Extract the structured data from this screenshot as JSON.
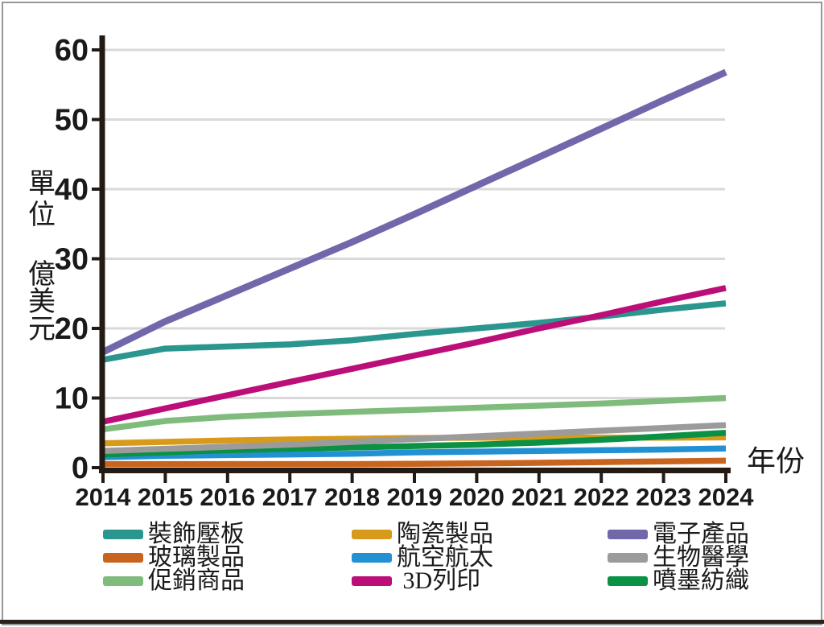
{
  "colors": {
    "grid": "#d9d9d9",
    "axis": "#241a14",
    "text": "#1a1a1a",
    "frame": "#979797",
    "bottom_bar": "#2b211c"
  },
  "chart_data": {
    "type": "line",
    "title": "",
    "xlabel": "年份",
    "ylabel": "單位 億美元",
    "x": [
      2014,
      2015,
      2016,
      2017,
      2018,
      2019,
      2020,
      2021,
      2022,
      2023,
      2024
    ],
    "ylim": [
      0,
      60
    ],
    "yticks": [
      0,
      10,
      20,
      30,
      40,
      50,
      60
    ],
    "grid": "horizontal",
    "legend_position": "bottom-3-columns",
    "series": [
      {
        "name": "玻璃製品",
        "color": "#c8641e",
        "values": [
          0.5,
          0.5,
          0.5,
          0.5,
          0.5,
          0.55,
          0.6,
          0.7,
          0.8,
          0.9,
          1.0
        ]
      },
      {
        "name": "航空航太",
        "color": "#2191d4",
        "values": [
          1.5,
          1.7,
          1.8,
          1.9,
          2.0,
          2.2,
          2.3,
          2.4,
          2.5,
          2.6,
          2.75
        ]
      },
      {
        "name": "陶瓷製品",
        "color": "#d89a1a",
        "values": [
          3.5,
          3.7,
          3.9,
          4.05,
          4.15,
          4.25,
          4.3,
          4.3,
          4.3,
          4.3,
          4.35
        ]
      },
      {
        "name": "噴墨紡織",
        "color": "#0a9143",
        "values": [
          1.9,
          2.2,
          2.5,
          2.7,
          2.9,
          3.1,
          3.3,
          3.6,
          4.0,
          4.5,
          5.0
        ]
      },
      {
        "name": "生物醫學",
        "color": "#9b9b9b",
        "values": [
          2.4,
          2.7,
          3.0,
          3.3,
          3.7,
          4.1,
          4.5,
          4.9,
          5.3,
          5.7,
          6.1
        ]
      },
      {
        "name": "促銷商品",
        "color": "#7fbc7c",
        "values": [
          5.5,
          6.7,
          7.3,
          7.7,
          8.0,
          8.3,
          8.6,
          8.9,
          9.2,
          9.6,
          10.0
        ]
      },
      {
        "name": "裝飾壓板",
        "color": "#2a968e",
        "values": [
          15.5,
          17.1,
          17.4,
          17.7,
          18.3,
          19.2,
          20.0,
          20.8,
          21.7,
          22.7,
          23.6
        ]
      },
      {
        "name": "3D列印",
        "color": "#bb0e78",
        "legend_label": " 3D列印",
        "values": [
          6.6,
          8.5,
          10.4,
          12.3,
          14.2,
          16.1,
          18.0,
          20.0,
          21.9,
          23.9,
          25.8
        ]
      },
      {
        "name": "電子產品",
        "color": "#7068ab",
        "stroke_width": 8.5,
        "values": [
          16.6,
          21.0,
          24.8,
          28.6,
          32.4,
          36.4,
          40.5,
          44.6,
          48.7,
          52.8,
          56.8
        ]
      }
    ],
    "legend_columns": [
      [
        "裝飾壓板",
        "玻璃製品",
        "促銷商品"
      ],
      [
        "陶瓷製品",
        "航空航太",
        "3D列印"
      ],
      [
        "電子產品",
        "生物醫學",
        "噴墨紡織"
      ]
    ]
  }
}
